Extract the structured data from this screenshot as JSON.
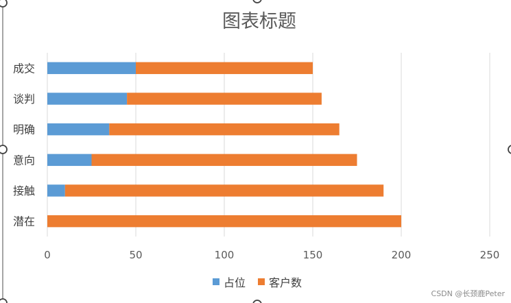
{
  "colors": {
    "series_1": "#5B9BD5",
    "series_2": "#ED7D31",
    "grid": "#D9D9D9"
  },
  "watermark": "CSDN @长颈鹿Peter",
  "chart_data": {
    "type": "bar",
    "orientation": "horizontal",
    "stacked": true,
    "title": "图表标题",
    "categories": [
      "成交",
      "谈判",
      "明确",
      "意向",
      "接触",
      "潜在"
    ],
    "series": [
      {
        "name": "占位",
        "values": [
          50,
          45,
          35,
          25,
          10,
          0
        ]
      },
      {
        "name": "客户数",
        "values": [
          100,
          110,
          130,
          150,
          180,
          200
        ]
      }
    ],
    "xlim": [
      0,
      250
    ],
    "xticks": [
      0,
      50,
      100,
      150,
      200,
      250
    ],
    "grid": true,
    "legend": "bottom"
  }
}
